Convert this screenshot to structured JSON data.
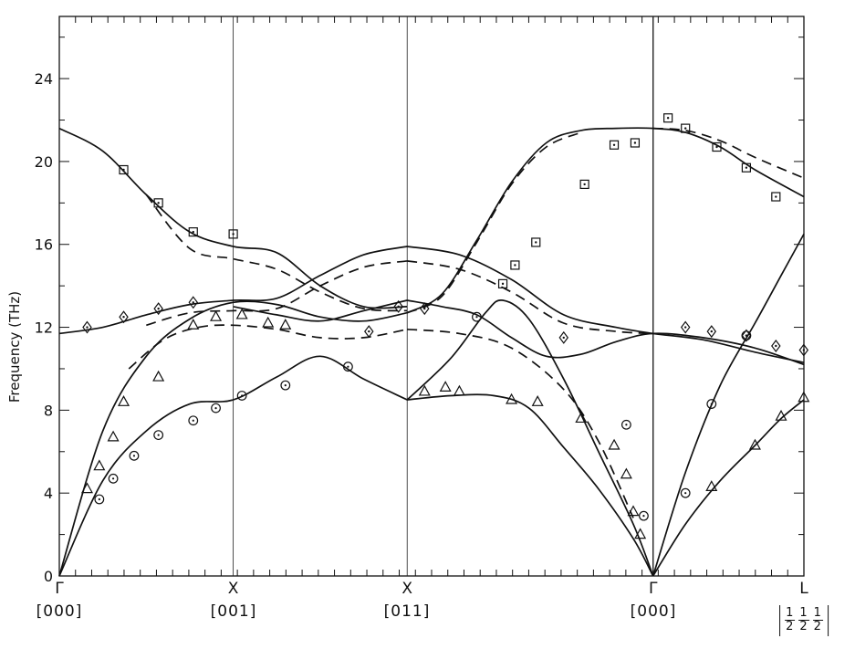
{
  "chart_data": {
    "type": "line",
    "title": "",
    "ylabel": "Frequency (THz)",
    "xlabel": "",
    "ylim": [
      0,
      27
    ],
    "yticks": [
      "0",
      "4",
      "8",
      "12",
      "16",
      "20",
      "24"
    ],
    "symmetry_points": [
      {
        "label": "Γ",
        "x": 0
      },
      {
        "label": "X",
        "x": 1
      },
      {
        "label": "X",
        "x": 2
      },
      {
        "label": "Γ",
        "x": 3.414
      },
      {
        "label": "L",
        "x": 4.281
      }
    ],
    "directions": [
      {
        "label": "[000]",
        "x": 0
      },
      {
        "label": "[001]",
        "x": 1
      },
      {
        "label": "[011]",
        "x": 2
      },
      {
        "label": "[000]",
        "x": 3.414
      },
      {
        "label": "½ ½ ½",
        "x": 4.281
      }
    ],
    "series": [
      {
        "style": "solid",
        "points": [
          [
            0,
            21.6
          ],
          [
            0.25,
            20.5
          ],
          [
            0.5,
            18.4
          ],
          [
            0.75,
            16.6
          ],
          [
            1,
            15.9
          ],
          [
            1.25,
            15.6
          ],
          [
            1.5,
            14.0
          ],
          [
            1.75,
            13.0
          ],
          [
            2,
            13.0
          ]
        ]
      },
      {
        "style": "solid",
        "points": [
          [
            0,
            0
          ],
          [
            0.25,
            7.0
          ],
          [
            0.5,
            10.6
          ],
          [
            0.75,
            12.4
          ],
          [
            1,
            13.2
          ],
          [
            1.25,
            13.1
          ],
          [
            1.5,
            12.5
          ],
          [
            1.75,
            12.3
          ],
          [
            2,
            12.7
          ]
        ]
      },
      {
        "style": "solid",
        "points": [
          [
            0,
            0
          ],
          [
            0.25,
            4.6
          ],
          [
            0.5,
            7.0
          ],
          [
            0.75,
            8.3
          ],
          [
            1,
            8.5
          ],
          [
            1.25,
            9.6
          ],
          [
            1.5,
            10.6
          ],
          [
            1.75,
            9.5
          ],
          [
            2,
            8.5
          ]
        ]
      },
      {
        "style": "solid",
        "points": [
          [
            0,
            11.7
          ],
          [
            0.25,
            12.0
          ],
          [
            0.5,
            12.6
          ],
          [
            0.75,
            13.1
          ],
          [
            1,
            13.3
          ],
          [
            1.25,
            13.4
          ],
          [
            1.5,
            14.5
          ],
          [
            1.75,
            15.5
          ],
          [
            2,
            15.9
          ]
        ]
      },
      {
        "style": "solid",
        "points": [
          [
            1,
            13.0
          ],
          [
            1.25,
            12.6
          ],
          [
            1.5,
            12.3
          ],
          [
            1.75,
            12.8
          ],
          [
            2,
            13.3
          ]
        ]
      },
      {
        "style": "solid",
        "points": [
          [
            2,
            15.9
          ],
          [
            2.3,
            15.5
          ],
          [
            2.6,
            14.3
          ],
          [
            2.9,
            12.6
          ],
          [
            3.2,
            12.0
          ],
          [
            3.414,
            11.7
          ],
          [
            3.7,
            11.4
          ],
          [
            4,
            10.8
          ],
          [
            4.281,
            10.3
          ]
        ]
      },
      {
        "style": "solid",
        "points": [
          [
            2,
            13.3
          ],
          [
            2.2,
            13.0
          ],
          [
            2.4,
            12.6
          ],
          [
            2.6,
            11.5
          ],
          [
            2.8,
            10.6
          ],
          [
            3.0,
            10.7
          ],
          [
            3.2,
            11.3
          ],
          [
            3.414,
            11.7
          ],
          [
            3.7,
            11.5
          ],
          [
            4,
            11.0
          ],
          [
            4.281,
            10.2
          ]
        ]
      },
      {
        "style": "solid",
        "points": [
          [
            2,
            12.7
          ],
          [
            2.2,
            13.6
          ],
          [
            2.4,
            16.2
          ],
          [
            2.6,
            19.0
          ],
          [
            2.8,
            20.9
          ],
          [
            3.0,
            21.5
          ],
          [
            3.2,
            21.6
          ],
          [
            3.414,
            21.6
          ],
          [
            3.6,
            21.4
          ],
          [
            3.8,
            20.7
          ],
          [
            4,
            19.6
          ],
          [
            4.281,
            18.3
          ]
        ]
      },
      {
        "style": "solid",
        "points": [
          [
            2,
            8.5
          ],
          [
            2.25,
            10.5
          ],
          [
            2.45,
            12.7
          ],
          [
            2.55,
            13.3
          ],
          [
            2.7,
            12.4
          ],
          [
            2.9,
            9.5
          ],
          [
            3.1,
            6.0
          ],
          [
            3.3,
            2.5
          ],
          [
            3.414,
            0
          ]
        ]
      },
      {
        "style": "solid",
        "points": [
          [
            2,
            8.5
          ],
          [
            2.25,
            8.7
          ],
          [
            2.5,
            8.7
          ],
          [
            2.7,
            8.1
          ],
          [
            2.9,
            6.2
          ],
          [
            3.1,
            4.2
          ],
          [
            3.3,
            1.8
          ],
          [
            3.414,
            0
          ]
        ]
      },
      {
        "style": "solid",
        "points": [
          [
            3.414,
            0
          ],
          [
            3.6,
            5.0
          ],
          [
            3.8,
            9.2
          ],
          [
            4.0,
            12.2
          ],
          [
            4.15,
            14.5
          ],
          [
            4.281,
            16.5
          ]
        ]
      },
      {
        "style": "solid",
        "points": [
          [
            3.414,
            0
          ],
          [
            3.6,
            2.5
          ],
          [
            3.8,
            4.6
          ],
          [
            4.0,
            6.3
          ],
          [
            4.15,
            7.6
          ],
          [
            4.281,
            8.5
          ]
        ]
      },
      {
        "style": "dashed",
        "points": [
          [
            0.5,
            18.4
          ],
          [
            0.75,
            15.8
          ],
          [
            1,
            15.3
          ],
          [
            1.25,
            14.8
          ],
          [
            1.5,
            13.7
          ],
          [
            1.75,
            12.9
          ],
          [
            2,
            12.8
          ]
        ]
      },
      {
        "style": "dashed",
        "points": [
          [
            0.4,
            10.0
          ],
          [
            0.6,
            11.4
          ],
          [
            0.8,
            12.0
          ],
          [
            1,
            12.1
          ],
          [
            1.25,
            11.9
          ],
          [
            1.5,
            11.5
          ],
          [
            1.75,
            11.5
          ],
          [
            2,
            11.9
          ]
        ]
      },
      {
        "style": "dashed",
        "points": [
          [
            0.5,
            12.1
          ],
          [
            0.75,
            12.7
          ],
          [
            1,
            12.8
          ],
          [
            1.25,
            12.9
          ],
          [
            1.5,
            14.0
          ],
          [
            1.75,
            14.9
          ],
          [
            2,
            15.2
          ]
        ]
      },
      {
        "style": "dashed",
        "points": [
          [
            2,
            15.2
          ],
          [
            2.3,
            14.8
          ],
          [
            2.6,
            13.7
          ],
          [
            2.9,
            12.2
          ],
          [
            3.2,
            11.8
          ],
          [
            3.414,
            11.7
          ]
        ]
      },
      {
        "style": "dashed",
        "points": [
          [
            2,
            11.9
          ],
          [
            2.3,
            11.7
          ],
          [
            2.6,
            11.0
          ],
          [
            2.9,
            9.0
          ],
          [
            3.1,
            6.5
          ],
          [
            3.3,
            2.8
          ]
        ]
      },
      {
        "style": "dashed",
        "points": [
          [
            3.414,
            21.6
          ],
          [
            3.6,
            21.5
          ],
          [
            3.8,
            21.0
          ],
          [
            4,
            20.2
          ],
          [
            4.281,
            19.2
          ]
        ]
      },
      {
        "style": "dashed",
        "points": [
          [
            2,
            12.7
          ],
          [
            2.2,
            13.5
          ],
          [
            2.4,
            16.1
          ],
          [
            2.6,
            18.9
          ],
          [
            2.8,
            20.7
          ],
          [
            3.0,
            21.4
          ]
        ]
      }
    ],
    "markers": [
      {
        "shape": "square-dot",
        "points": [
          [
            0.37,
            19.6
          ],
          [
            0.57,
            18.0
          ],
          [
            0.77,
            16.6
          ],
          [
            1,
            16.5
          ],
          [
            2.55,
            14.1
          ],
          [
            2.62,
            15.0
          ],
          [
            2.74,
            16.1
          ],
          [
            3.02,
            18.9
          ],
          [
            3.19,
            20.8
          ],
          [
            3.31,
            20.9
          ],
          [
            3.5,
            22.1
          ],
          [
            3.6,
            21.6
          ],
          [
            3.78,
            20.7
          ],
          [
            3.95,
            19.7
          ],
          [
            4.12,
            18.3
          ]
        ]
      },
      {
        "shape": "diamond-dot",
        "points": [
          [
            0.16,
            12.0
          ],
          [
            0.37,
            12.5
          ],
          [
            0.57,
            12.9
          ],
          [
            0.77,
            13.2
          ],
          [
            1.78,
            11.8
          ],
          [
            1.95,
            13.0
          ],
          [
            2.1,
            12.9
          ],
          [
            2.9,
            11.5
          ],
          [
            3.6,
            12.0
          ],
          [
            3.75,
            11.8
          ],
          [
            3.95,
            11.6
          ],
          [
            4.12,
            11.1
          ],
          [
            4.28,
            10.9
          ]
        ]
      },
      {
        "shape": "triangle",
        "points": [
          [
            0.16,
            4.2
          ],
          [
            0.23,
            5.3
          ],
          [
            0.31,
            6.7
          ],
          [
            0.37,
            8.4
          ],
          [
            0.57,
            9.6
          ],
          [
            0.77,
            12.1
          ],
          [
            0.9,
            12.5
          ],
          [
            1.05,
            12.6
          ],
          [
            1.2,
            12.2
          ],
          [
            1.3,
            12.1
          ],
          [
            2.1,
            8.9
          ],
          [
            2.22,
            9.1
          ],
          [
            2.3,
            8.9
          ],
          [
            2.6,
            8.5
          ],
          [
            2.75,
            8.4
          ],
          [
            3.0,
            7.6
          ],
          [
            3.19,
            6.3
          ],
          [
            3.26,
            4.9
          ],
          [
            3.3,
            3.1
          ],
          [
            3.34,
            2.0
          ],
          [
            3.75,
            4.3
          ],
          [
            4.0,
            6.3
          ],
          [
            4.15,
            7.7
          ],
          [
            4.28,
            8.6
          ]
        ]
      },
      {
        "shape": "circle",
        "points": [
          [
            0.23,
            3.7
          ],
          [
            0.31,
            4.7
          ],
          [
            0.43,
            5.8
          ],
          [
            0.57,
            6.8
          ],
          [
            0.77,
            7.5
          ],
          [
            0.9,
            8.1
          ],
          [
            1.05,
            8.7
          ],
          [
            1.3,
            9.2
          ],
          [
            1.66,
            10.1
          ],
          [
            2.4,
            12.5
          ],
          [
            3.26,
            7.3
          ],
          [
            3.36,
            2.9
          ],
          [
            3.6,
            4.0
          ],
          [
            3.75,
            8.3
          ],
          [
            3.95,
            11.6
          ]
        ]
      }
    ]
  }
}
